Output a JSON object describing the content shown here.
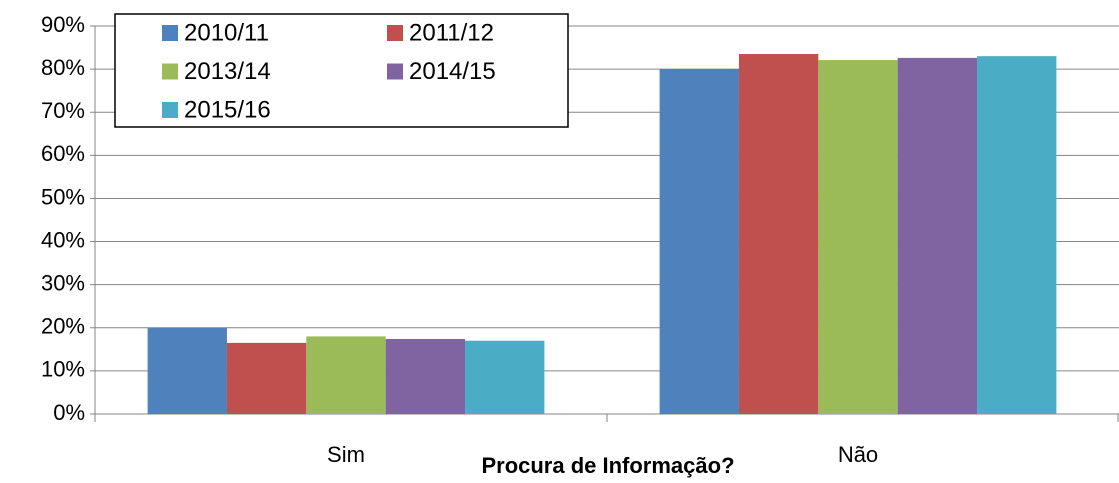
{
  "chart_data": {
    "type": "bar",
    "x_label": "Procura de Informação?",
    "categories": [
      "Sim",
      "Não"
    ],
    "series": [
      {
        "name": "2010/11",
        "color": "#4f81bd",
        "values": [
          20,
          80
        ]
      },
      {
        "name": "2011/12",
        "color": "#c0504d",
        "values": [
          16.5,
          83.5
        ]
      },
      {
        "name": "2013/14",
        "color": "#9bbb59",
        "values": [
          18,
          82.1
        ]
      },
      {
        "name": "2014/15",
        "color": "#8064a2",
        "values": [
          17.4,
          82.6
        ]
      },
      {
        "name": "2015/16",
        "color": "#4bacc6",
        "values": [
          17,
          83
        ]
      }
    ],
    "ylim": [
      0,
      90
    ],
    "yticks": [
      {
        "value": 0,
        "label": "0%"
      },
      {
        "value": 10,
        "label": "10%"
      },
      {
        "value": 20,
        "label": "20%"
      },
      {
        "value": 30,
        "label": "30%"
      },
      {
        "value": 40,
        "label": "40%"
      },
      {
        "value": 50,
        "label": "50%"
      },
      {
        "value": 60,
        "label": "60%"
      },
      {
        "value": 70,
        "label": "70%"
      },
      {
        "value": 80,
        "label": "80%"
      },
      {
        "value": 90,
        "label": "90%"
      }
    ],
    "grid": true,
    "legend": "top-left"
  }
}
